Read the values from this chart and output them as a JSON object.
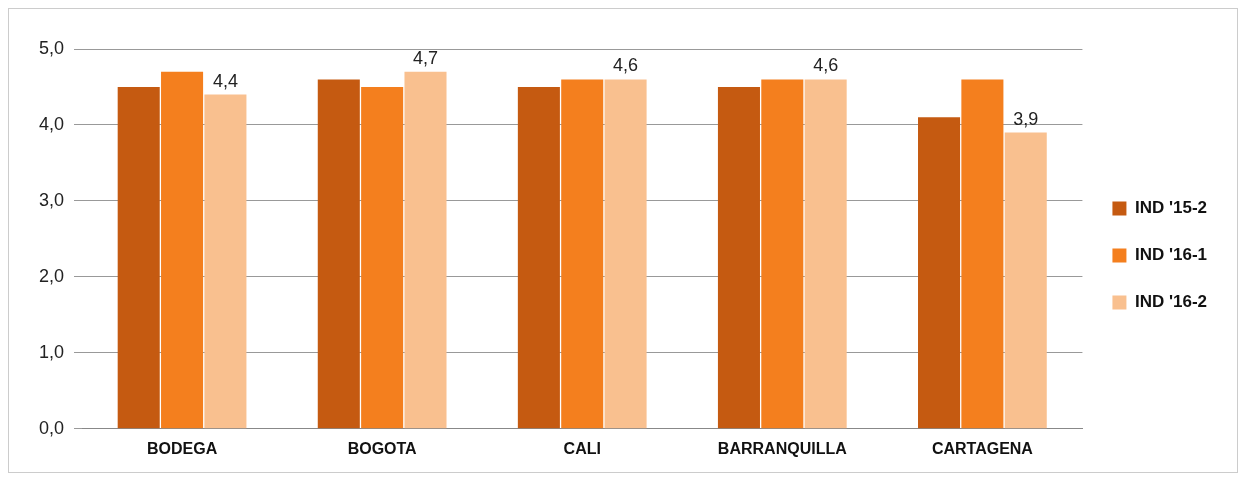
{
  "chart_data": {
    "type": "bar",
    "categories": [
      "BODEGA",
      "BOGOTA",
      "CALI",
      "BARRANQUILLA",
      "CARTAGENA"
    ],
    "series": [
      {
        "name": "IND '15-2",
        "color": "#c55a11",
        "values": [
          4.5,
          4.6,
          4.5,
          4.5,
          4.1
        ]
      },
      {
        "name": "IND '16-1",
        "color": "#f47f1e",
        "values": [
          4.7,
          4.5,
          4.6,
          4.6,
          4.6
        ]
      },
      {
        "name": "IND '16-2",
        "color": "#f9c08f",
        "values": [
          4.4,
          4.7,
          4.6,
          4.6,
          3.9
        ],
        "value_labels": [
          "4,4",
          "4,7",
          "4,6",
          "4,6",
          "3,9"
        ]
      }
    ],
    "ylim": [
      0,
      5
    ],
    "yticks": [
      {
        "value": 0,
        "label": "0,0"
      },
      {
        "value": 1,
        "label": "1,0"
      },
      {
        "value": 2,
        "label": "2,0"
      },
      {
        "value": 3,
        "label": "3,0"
      },
      {
        "value": 4,
        "label": "4,0"
      },
      {
        "value": 5,
        "label": "5,0"
      }
    ],
    "grid": "y",
    "legend": "right"
  }
}
